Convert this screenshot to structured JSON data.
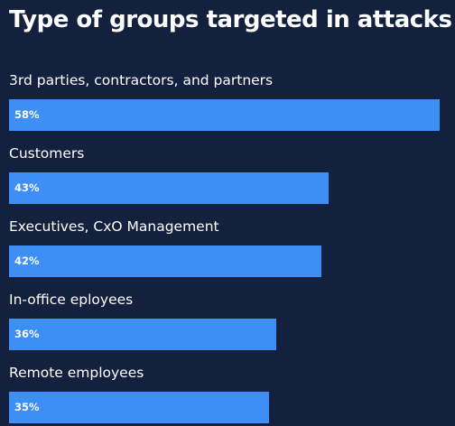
{
  "colors": {
    "background": "#13213f",
    "bar": "#3d8ef5",
    "text": "#ffffff"
  },
  "chart_data": {
    "type": "bar",
    "orientation": "horizontal",
    "title": "Type of groups targeted in attacks",
    "xlim": [
      0,
      100
    ],
    "grid": false,
    "categories": [
      "3rd parties, contractors, and partners",
      "Customers",
      "Executives, CxO Management",
      "In-office eployees",
      "Remote employees"
    ],
    "values": [
      58,
      43,
      42,
      36,
      35
    ],
    "value_labels": [
      "58%",
      "43%",
      "42%",
      "36%",
      "35%"
    ]
  }
}
